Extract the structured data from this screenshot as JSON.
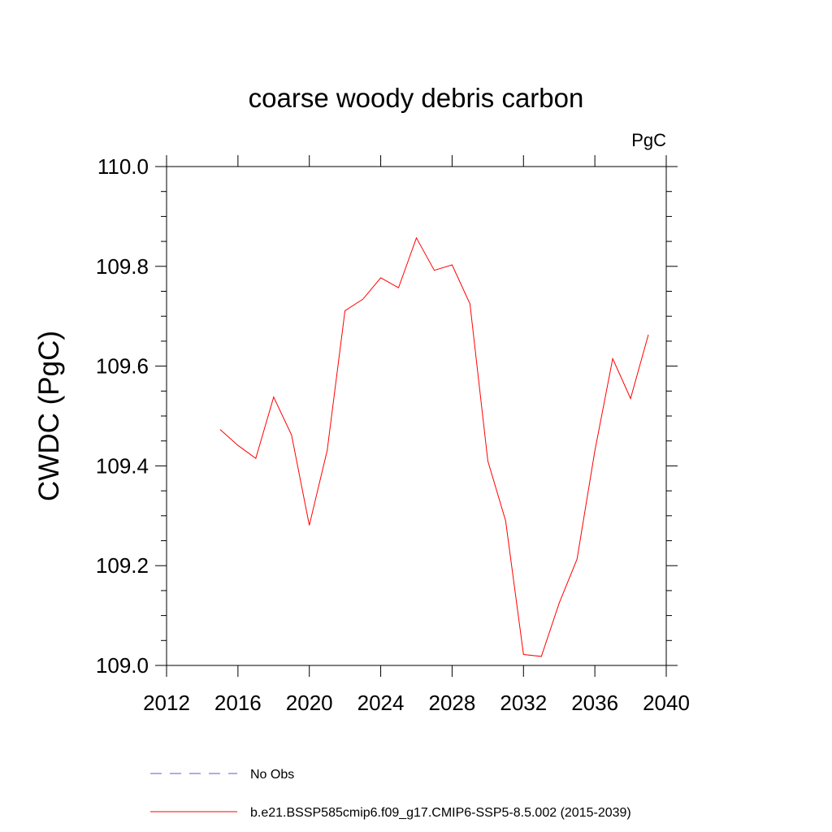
{
  "chart_data": {
    "type": "line",
    "title": "coarse woody debris carbon",
    "units_label": "PgC",
    "ylabel": "CWDC  (PgC)",
    "xlabel": "",
    "xlim": [
      2012,
      2040
    ],
    "ylim": [
      109.0,
      110.0
    ],
    "x_ticks": [
      2012,
      2016,
      2020,
      2024,
      2028,
      2032,
      2036,
      2040
    ],
    "y_ticks": [
      109.0,
      109.2,
      109.4,
      109.6,
      109.8,
      110.0
    ],
    "y_tick_labels": [
      "109.0",
      "109.2",
      "109.4",
      "109.6",
      "109.8",
      "110.0"
    ],
    "grid": false,
    "legend_position": "bottom",
    "series": [
      {
        "name": "b.e21.BSSP585cmip6.f09_g17.CMIP6-SSP5-8.5.002 (2015-2039)",
        "color": "#ff0000",
        "style": "solid",
        "x": [
          2015,
          2016,
          2017,
          2018,
          2019,
          2020,
          2021,
          2022,
          2023,
          2024,
          2025,
          2026,
          2027,
          2028,
          2029,
          2030,
          2031,
          2032,
          2033,
          2034,
          2035,
          2036,
          2037,
          2038,
          2039
        ],
        "y": [
          109.473,
          109.441,
          109.415,
          109.538,
          109.462,
          109.281,
          109.431,
          109.711,
          109.734,
          109.777,
          109.757,
          109.857,
          109.792,
          109.803,
          109.725,
          109.41,
          109.29,
          109.022,
          109.018,
          109.125,
          109.213,
          109.43,
          109.615,
          109.535,
          109.663
        ]
      }
    ],
    "legend": [
      {
        "label": "No Obs",
        "color": "#5b5bd6",
        "style": "dashed"
      },
      {
        "label": "b.e21.BSSP585cmip6.f09_g17.CMIP6-SSP5-8.5.002 (2015-2039)",
        "color": "#ff0000",
        "style": "solid"
      }
    ]
  }
}
